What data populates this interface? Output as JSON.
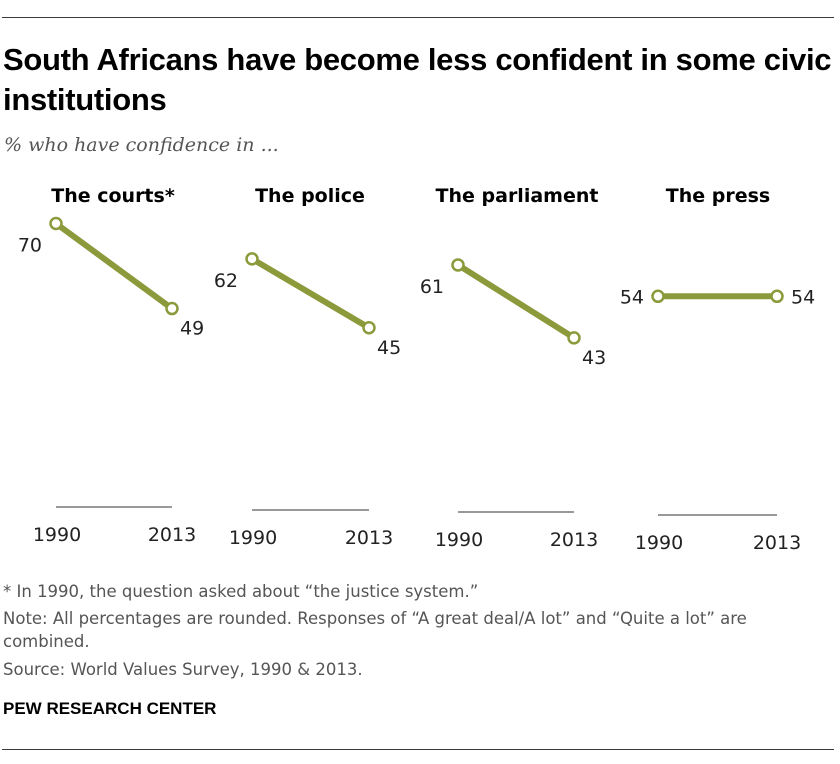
{
  "title": "South Africans have become less confident in some civic institutions",
  "subtitle": "% who have confidence in ...",
  "footnote": "* In 1990, the question asked about “the justice system.”",
  "note": "Note: All percentages are rounded. Responses of “A great deal/A lot” and “Quite a lot” are combined.",
  "source": "Source: World Values Survey, 1990 & 2013.",
  "brand": "PEW RESEARCH CENTER",
  "colors": {
    "line": "#8c9a3c",
    "marker_fill": "#ffffff",
    "axis": "#333333",
    "value_text": "#222222"
  },
  "chart_data": [
    {
      "type": "line",
      "title": "The courts*",
      "x": [
        "1990",
        "2013"
      ],
      "values": [
        70,
        49
      ],
      "ylim": [
        0,
        80
      ]
    },
    {
      "type": "line",
      "title": "The police",
      "x": [
        "1990",
        "2013"
      ],
      "values": [
        62,
        45
      ],
      "ylim": [
        0,
        80
      ]
    },
    {
      "type": "line",
      "title": "The parliament",
      "x": [
        "1990",
        "2013"
      ],
      "values": [
        61,
        43
      ],
      "ylim": [
        0,
        80
      ]
    },
    {
      "type": "line",
      "title": "The press",
      "x": [
        "1990",
        "2013"
      ],
      "values": [
        54,
        54
      ],
      "ylim": [
        0,
        80
      ]
    }
  ]
}
